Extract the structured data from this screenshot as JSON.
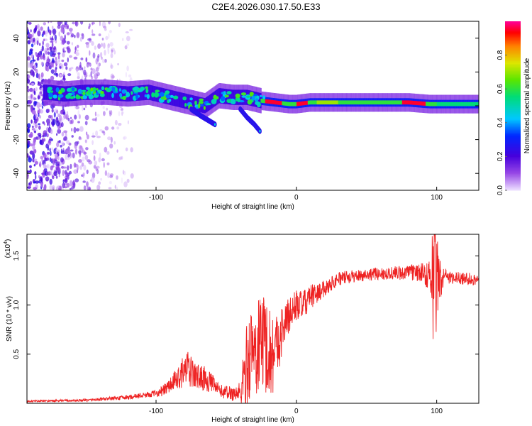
{
  "title": "C2E4.2026.030.17.50.E33",
  "colors": {
    "snr_line": "#ee2222",
    "axis": "#000000"
  },
  "chart_data": [
    {
      "type": "heatmap",
      "name": "spectrogram",
      "xlabel": "Height of straight line (km)",
      "ylabel": "Frequency (Hz)",
      "xlim": [
        -192,
        130
      ],
      "ylim": [
        -50,
        50
      ],
      "xticks": [
        "-100",
        "0",
        "100"
      ],
      "xtick_values": [
        -100,
        0,
        100
      ],
      "yticks": [
        "-40",
        "-20",
        "0",
        "20",
        "40"
      ],
      "ytick_values": [
        -40,
        -20,
        0,
        20,
        40
      ],
      "ridge": {
        "x": [
          -178,
          -165,
          -150,
          -135,
          -120,
          -105,
          -95,
          -85,
          -75,
          -65,
          -55,
          -45,
          -35,
          -25,
          -15,
          -5,
          0,
          10,
          20,
          40,
          60,
          80,
          95,
          100,
          110,
          130
        ],
        "y": [
          8,
          7,
          8,
          8,
          7,
          8,
          6,
          4,
          2,
          0,
          6,
          5,
          5,
          3,
          2,
          1,
          1,
          2,
          2,
          2,
          2,
          2,
          1,
          1,
          1,
          1
        ]
      },
      "branch": {
        "x": [
          -75,
          -68,
          -62,
          -58
        ],
        "y": [
          -2,
          -6,
          -9,
          -11
        ]
      },
      "branch2": {
        "x": [
          -40,
          -35,
          -30,
          -26
        ],
        "y": [
          -2,
          -7,
          -11,
          -15
        ]
      },
      "colorbar": {
        "label": "Normalized spectral amplitude",
        "ticks": [
          "0.0",
          "0.2",
          "0.4",
          "0.6",
          "0.8"
        ],
        "tick_values": [
          0.0,
          0.2,
          0.4,
          0.6,
          0.8
        ],
        "range": [
          0,
          1
        ]
      }
    },
    {
      "type": "line",
      "name": "snr",
      "xlabel": "Height of straight line (km)",
      "ylabel": "SNR (10 * v/v)",
      "yscale_label": "(x10",
      "yscale_exp": "4",
      "xlim": [
        -192,
        130
      ],
      "ylim": [
        0,
        1.72
      ],
      "xticks": [
        "-100",
        "0",
        "100"
      ],
      "xtick_values": [
        -100,
        0,
        100
      ],
      "yticks": [
        "0.5",
        "1.0",
        "1.5"
      ],
      "ytick_values": [
        0.5,
        1.0,
        1.5
      ],
      "envelope": {
        "x": [
          -192,
          -150,
          -120,
          -100,
          -95,
          -90,
          -85,
          -82,
          -78,
          -72,
          -65,
          -60,
          -55,
          -50,
          -45,
          -40,
          -35,
          -32,
          -28,
          -25,
          -22,
          -18,
          -15,
          -10,
          -5,
          0,
          5,
          10,
          15,
          20,
          25,
          30,
          40,
          50,
          60,
          80,
          90,
          95,
          98,
          100,
          102,
          105,
          110,
          130
        ],
        "y": [
          0.02,
          0.03,
          0.06,
          0.1,
          0.13,
          0.18,
          0.25,
          0.3,
          0.35,
          0.28,
          0.25,
          0.2,
          0.13,
          0.11,
          0.1,
          0.1,
          0.4,
          0.55,
          0.5,
          0.7,
          0.6,
          0.5,
          0.55,
          0.75,
          0.9,
          1.0,
          1.0,
          1.08,
          1.12,
          1.17,
          1.22,
          1.27,
          1.29,
          1.31,
          1.32,
          1.33,
          1.33,
          1.3,
          1.35,
          1.3,
          1.25,
          1.29,
          1.28,
          1.26
        ]
      },
      "noise": {
        "x": [
          -192,
          -140,
          -100,
          -85,
          -78,
          -72,
          -65,
          -55,
          -45,
          -40,
          -35,
          -30,
          -25,
          -20,
          -15,
          -10,
          -5,
          0,
          10,
          20,
          40,
          60,
          80,
          90,
          95,
          98,
          100,
          102,
          105,
          110,
          130
        ],
        "y": [
          0.005,
          0.01,
          0.02,
          0.07,
          0.12,
          0.08,
          0.08,
          0.04,
          0.05,
          0.08,
          0.3,
          0.25,
          0.35,
          0.3,
          0.25,
          0.15,
          0.12,
          0.1,
          0.08,
          0.05,
          0.04,
          0.04,
          0.05,
          0.06,
          0.1,
          0.3,
          0.35,
          0.15,
          0.05,
          0.04,
          0.04
        ]
      }
    }
  ]
}
